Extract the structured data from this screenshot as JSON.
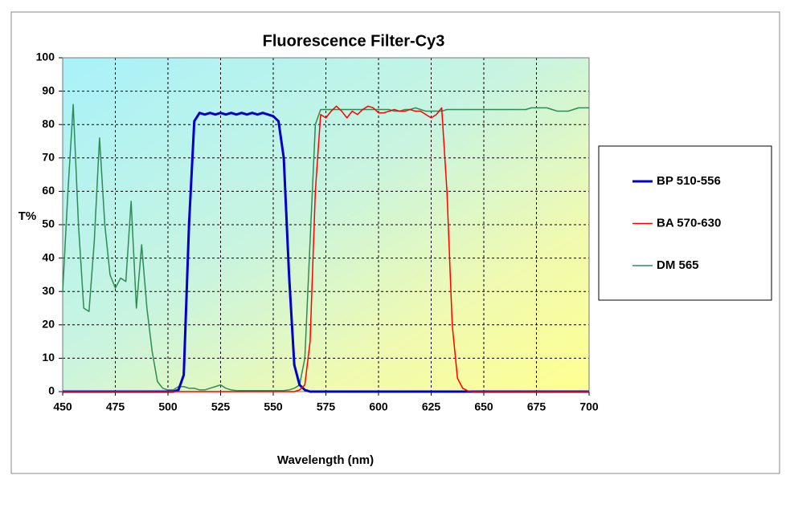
{
  "chart_data": {
    "type": "line",
    "title": "Fluorescence Filter-Cy3",
    "x_label": "Wavelength (nm)",
    "y_label": "T%",
    "x": [
      450,
      452.5,
      455,
      457.5,
      460,
      462.5,
      465,
      467.5,
      470,
      472.5,
      475,
      477.5,
      480,
      482.5,
      485,
      487.5,
      490,
      492.5,
      495,
      497.5,
      500,
      502.5,
      505,
      507.5,
      510,
      512.5,
      515,
      517.5,
      520,
      522.5,
      525,
      527.5,
      530,
      532.5,
      535,
      537.5,
      540,
      542.5,
      545,
      547.5,
      550,
      552.5,
      555,
      557.5,
      560,
      562.5,
      565,
      567.5,
      570,
      572.5,
      575,
      577.5,
      580,
      582.5,
      585,
      587.5,
      590,
      592.5,
      595,
      597.5,
      600,
      602.5,
      605,
      607.5,
      610,
      612.5,
      615,
      617.5,
      620,
      622.5,
      625,
      627.5,
      630,
      632.5,
      635,
      637.5,
      640,
      642.5,
      645,
      647.5,
      650,
      652.5,
      655,
      657.5,
      660,
      662.5,
      665,
      667.5,
      670,
      672.5,
      675,
      677.5,
      680,
      682.5,
      685,
      687.5,
      690,
      692.5,
      695,
      697.5,
      700
    ],
    "series": [
      {
        "name": "BP 510-556",
        "color": "#0000cc",
        "values": [
          0,
          0,
          0,
          0,
          0,
          0,
          0,
          0,
          0,
          0,
          0,
          0,
          0,
          0,
          0,
          0,
          0,
          0,
          0,
          0,
          0,
          0,
          0.5,
          5,
          50,
          81,
          83.5,
          83,
          83.5,
          83,
          83.5,
          83,
          83.5,
          83,
          83.5,
          83,
          83.5,
          83,
          83.5,
          83,
          82.5,
          81,
          70,
          35,
          8,
          2,
          0.5,
          0,
          0,
          0,
          0,
          0,
          0,
          0,
          0,
          0,
          0,
          0,
          0,
          0,
          0,
          0,
          0,
          0,
          0,
          0,
          0,
          0,
          0,
          0,
          0,
          0,
          0,
          0,
          0,
          0,
          0,
          0,
          0,
          0,
          0,
          0,
          0,
          0,
          0,
          0,
          0,
          0,
          0,
          0,
          0,
          0,
          0,
          0,
          0,
          0,
          0,
          0,
          0,
          0,
          0
        ]
      },
      {
        "name": "BA 570-630",
        "color": "#ff0000",
        "values": [
          0,
          0,
          0,
          0,
          0,
          0,
          0,
          0,
          0,
          0,
          0,
          0,
          0,
          0,
          0,
          0,
          0,
          0,
          0,
          0,
          0,
          0,
          0,
          0,
          0,
          0,
          0,
          0,
          0,
          0,
          0,
          0,
          0,
          0,
          0,
          0,
          0,
          0,
          0,
          0,
          0,
          0,
          0,
          0,
          0,
          0.5,
          2,
          15,
          60,
          83,
          82,
          84,
          85.5,
          84,
          82,
          84,
          83,
          84.5,
          85.5,
          85,
          83.5,
          83.5,
          84,
          84.5,
          84,
          84,
          84.5,
          84,
          84,
          83,
          82,
          83,
          85,
          60,
          20,
          4,
          1,
          0.2,
          0,
          0,
          0,
          0,
          0,
          0,
          0,
          0,
          0,
          0,
          0,
          0,
          0,
          0,
          0,
          0,
          0,
          0,
          0,
          0,
          0,
          0,
          0
        ]
      },
      {
        "name": "DM 565",
        "color": "#2e8b57",
        "values": [
          30,
          60,
          86,
          50,
          25,
          24,
          45,
          76,
          50,
          35,
          31,
          34,
          33,
          57,
          25,
          44,
          25,
          12,
          3,
          1,
          0.5,
          0.5,
          1.5,
          1.5,
          1,
          1,
          0.5,
          0.5,
          1,
          1.5,
          2,
          1,
          0.5,
          0.3,
          0.3,
          0.3,
          0.3,
          0.3,
          0.3,
          0.3,
          0.3,
          0.3,
          0.3,
          0.5,
          1,
          2,
          10,
          45,
          80,
          84.5,
          84.5,
          84.5,
          84.5,
          84.5,
          84.5,
          84.5,
          84.5,
          84.5,
          84.5,
          84.5,
          84.5,
          84.5,
          84.5,
          84,
          84,
          84.5,
          84.5,
          85,
          84.5,
          84,
          84,
          84,
          84,
          84.5,
          84.5,
          84.5,
          84.5,
          84.5,
          84.5,
          84.5,
          84.5,
          84.5,
          84.5,
          84.5,
          84.5,
          84.5,
          84.5,
          84.5,
          84.5,
          85,
          85,
          85,
          85,
          84.5,
          84,
          84,
          84,
          84.5,
          85,
          85,
          85
        ]
      }
    ],
    "xlim": [
      450,
      700
    ],
    "xticks": [
      450,
      475,
      500,
      525,
      550,
      575,
      600,
      625,
      650,
      675,
      700
    ],
    "ylim": [
      0,
      100
    ],
    "yticks": [
      0,
      10,
      20,
      30,
      40,
      50,
      60,
      70,
      80,
      90,
      100
    ],
    "grid": true,
    "legend": "right"
  }
}
